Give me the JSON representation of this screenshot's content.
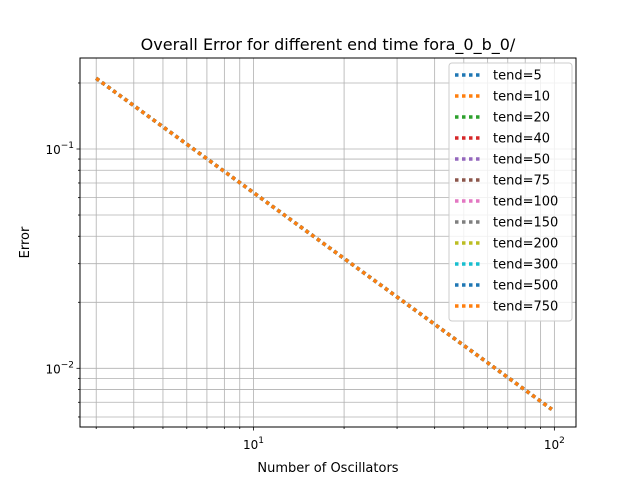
{
  "chart_data": {
    "type": "line",
    "title": "Overall Error for different end time fora_0_b_0/",
    "xlabel": "Number of Oscillators",
    "ylabel": "Error",
    "xscale": "log",
    "yscale": "log",
    "xlim": [
      2.65,
      118
    ],
    "ylim": [
      0.0054,
      0.26
    ],
    "grid": "both major and minor",
    "legend_position": "upper right",
    "x_ticks": [
      {
        "value": 10,
        "base": "10",
        "exp": "1"
      },
      {
        "value": 100,
        "base": "10",
        "exp": "2"
      }
    ],
    "y_ticks": [
      {
        "value": 0.01,
        "base": "10",
        "exp": "−2"
      },
      {
        "value": 0.1,
        "base": "10",
        "exp": "−1"
      }
    ],
    "x": [
      3,
      98
    ],
    "series": [
      {
        "name": "tend=5",
        "color": "#1f77b4",
        "values": [
          0.21,
          0.0065
        ]
      },
      {
        "name": "tend=10",
        "color": "#ff7f0e",
        "values": [
          0.21,
          0.0065
        ]
      },
      {
        "name": "tend=20",
        "color": "#2ca02c",
        "values": [
          0.21,
          0.0065
        ]
      },
      {
        "name": "tend=40",
        "color": "#d62728",
        "values": [
          0.21,
          0.0065
        ]
      },
      {
        "name": "tend=50",
        "color": "#9467bd",
        "values": [
          0.21,
          0.0065
        ]
      },
      {
        "name": "tend=75",
        "color": "#8c564b",
        "values": [
          0.21,
          0.0065
        ]
      },
      {
        "name": "tend=100",
        "color": "#e377c2",
        "values": [
          0.21,
          0.0065
        ]
      },
      {
        "name": "tend=150",
        "color": "#7f7f7f",
        "values": [
          0.21,
          0.0065
        ]
      },
      {
        "name": "tend=200",
        "color": "#bcbd22",
        "values": [
          0.21,
          0.0065
        ]
      },
      {
        "name": "tend=300",
        "color": "#17becf",
        "values": [
          0.21,
          0.0065
        ]
      },
      {
        "name": "tend=500",
        "color": "#1f77b4",
        "values": [
          0.21,
          0.0065
        ]
      },
      {
        "name": "tend=750",
        "color": "#ff7f0e",
        "values": [
          0.21,
          0.0065
        ]
      }
    ]
  }
}
